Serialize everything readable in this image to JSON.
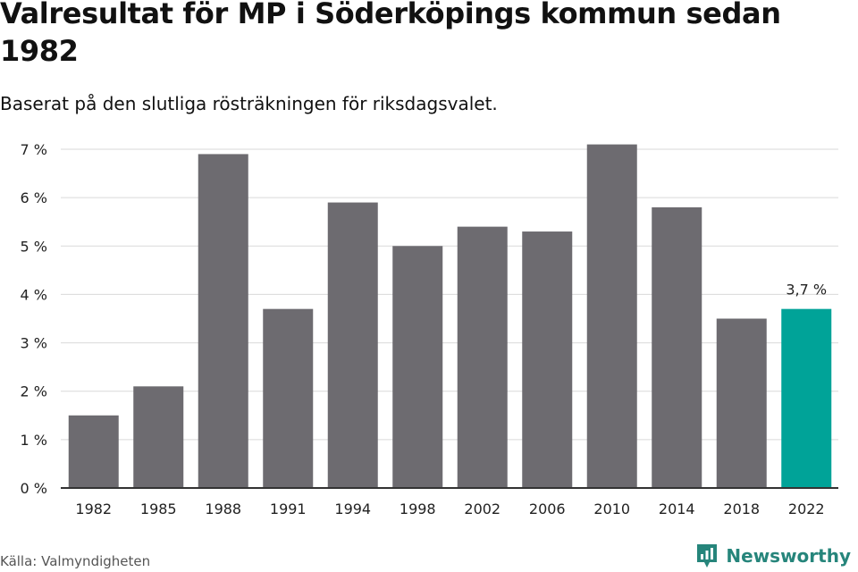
{
  "title": "Valresultat för MP i Söderköpings kommun sedan 1982",
  "subtitle": "Baserat på den slutliga rösträkningen för riksdagsvalet.",
  "source": "Källa: Valmyndigheten",
  "brand": "Newsworthy",
  "colors": {
    "bar": "#6d6b70",
    "highlight": "#00a398",
    "grid": "#d9d9d9",
    "axis": "#333333",
    "brand": "#26857b"
  },
  "chart_data": {
    "type": "bar",
    "categories": [
      "1982",
      "1985",
      "1988",
      "1991",
      "1994",
      "1998",
      "2002",
      "2006",
      "2010",
      "2014",
      "2018",
      "2022"
    ],
    "values": [
      1.5,
      2.1,
      6.9,
      3.7,
      5.9,
      5.0,
      5.4,
      5.3,
      7.1,
      5.8,
      3.5,
      3.7
    ],
    "highlight_index": 11,
    "highlight_label": "3,7 %",
    "yticks": [
      "0 %",
      "1 %",
      "2 %",
      "3 %",
      "4 %",
      "5 %",
      "6 %",
      "7 %"
    ],
    "ylim": [
      0,
      7
    ],
    "grid": true
  }
}
